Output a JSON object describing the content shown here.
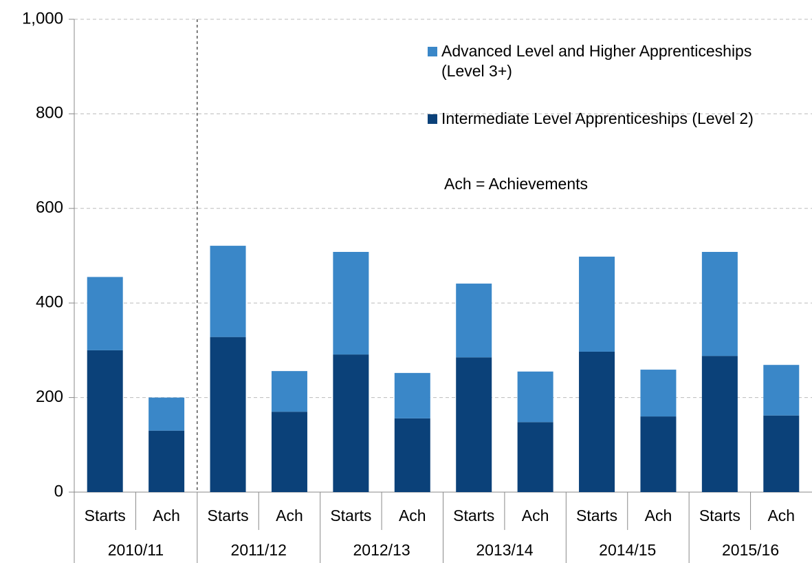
{
  "chart_data": {
    "type": "stacked_bar",
    "annotation": "Ach = Achievements",
    "groups": [
      "2010/11",
      "2011/12",
      "2012/13",
      "2013/14",
      "2014/15",
      "2015/16"
    ],
    "categories": [
      "Starts",
      "Ach",
      "Starts",
      "Ach",
      "Starts",
      "Ach",
      "Starts",
      "Ach",
      "Starts",
      "Ach",
      "Starts",
      "Ach"
    ],
    "series": [
      {
        "name": "Intermediate Level Apprenticeships (Level 2)",
        "color": "#0b4179",
        "values": [
          300,
          130,
          328,
          170,
          291,
          156,
          285,
          148,
          297,
          160,
          288,
          162
        ]
      },
      {
        "name": "Advanced Level and Higher Apprenticeships (Level 3+)",
        "color": "#3a87c8",
        "values": [
          155,
          70,
          193,
          86,
          217,
          96,
          156,
          107,
          201,
          99,
          220,
          107
        ]
      }
    ],
    "ylim": [
      0,
      1000
    ],
    "yticks": [
      0,
      200,
      400,
      600,
      800,
      {
        "value": 1000,
        "label": "1,000"
      }
    ],
    "grid": true
  }
}
